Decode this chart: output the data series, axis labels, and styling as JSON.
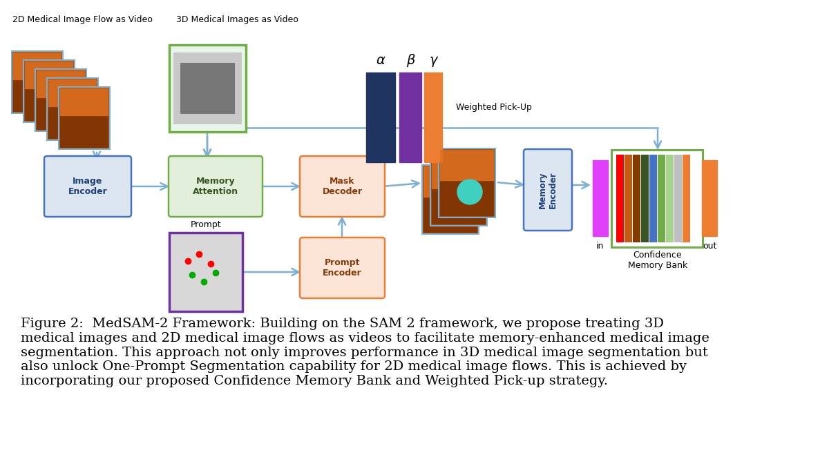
{
  "bg_color": "#ffffff",
  "fig_caption": "Figure 2:  MedSAM-2 Framework: Building on the SAM 2 framework, we propose treating 3D\nmedical images and 2D medical image flows as videos to facilitate memory-enhanced medical image\nsegmentation. This approach not only improves performance in 3D medical image segmentation but\nalso unlock One-Prompt Segmentation capability for 2D medical image flows. This is achieved by\nincorporating our proposed Confidence Memory Bank and Weighted Pick-up strategy.",
  "label_2d": "2D Medical Image Flow as Video",
  "label_3d": "3D Medical Images as Video",
  "arrow_color": "#7bafd4",
  "alpha_text": "α",
  "beta_text": "β",
  "gamma_text": "γ",
  "weighted_pickup_text": "Weighted Pick-Up",
  "prompt_text": "Prompt",
  "in_text": "in",
  "out_text": "out",
  "confidence_memory_bank_text": "Confidence\nMemory Bank",
  "confidence_bank_colors": [
    "#ff0000",
    "#c55a11",
    "#833c00",
    "#375623",
    "#4472c4",
    "#70ad47",
    "#a9d18e",
    "#bfbfbf",
    "#ed7d31"
  ]
}
